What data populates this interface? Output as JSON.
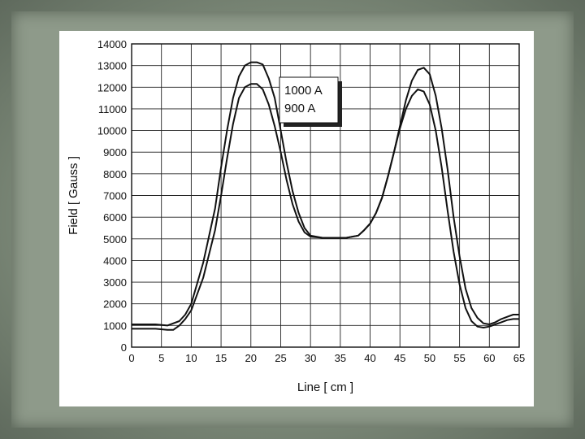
{
  "chart_data": {
    "type": "line",
    "xlabel": "Line [ cm ]",
    "ylabel": "Field [ Gauss ]",
    "xlim": [
      0,
      65
    ],
    "ylim": [
      0,
      14000
    ],
    "xticks": [
      0,
      5,
      10,
      15,
      20,
      25,
      30,
      35,
      40,
      45,
      50,
      55,
      60,
      65
    ],
    "yticks": [
      0,
      1000,
      2000,
      3000,
      4000,
      5000,
      6000,
      7000,
      8000,
      9000,
      10000,
      11000,
      12000,
      13000,
      14000
    ],
    "grid": true,
    "legend_placement": "top-center",
    "series": [
      {
        "name": "1000 A",
        "x": [
          0,
          2,
          4,
          6,
          8,
          9,
          10,
          12,
          14,
          15,
          16,
          17,
          18,
          19,
          20,
          21,
          22,
          23,
          24,
          25,
          26,
          27,
          28,
          29,
          30,
          32,
          34,
          36,
          38,
          39,
          40,
          41,
          42,
          43,
          44,
          45,
          46,
          47,
          48,
          49,
          50,
          51,
          52,
          53,
          54,
          55,
          56,
          57,
          58,
          59,
          60,
          61,
          62,
          63,
          64,
          65
        ],
        "y": [
          1050,
          1050,
          1050,
          1000,
          1200,
          1500,
          2000,
          3900,
          6400,
          8300,
          10000,
          11500,
          12500,
          13000,
          13150,
          13150,
          13050,
          12400,
          11500,
          10000,
          8500,
          7200,
          6200,
          5500,
          5150,
          5050,
          5050,
          5050,
          5150,
          5400,
          5700,
          6200,
          6900,
          7900,
          9000,
          10200,
          11400,
          12300,
          12800,
          12900,
          12600,
          11600,
          10100,
          8200,
          6000,
          4200,
          2700,
          1800,
          1350,
          1100,
          1050,
          1150,
          1300,
          1400,
          1500,
          1500
        ]
      },
      {
        "name": "900 A",
        "x": [
          0,
          2,
          4,
          6,
          7,
          8,
          9,
          10,
          12,
          14,
          15,
          16,
          17,
          18,
          19,
          20,
          21,
          22,
          23,
          24,
          25,
          26,
          27,
          28,
          29,
          30,
          32,
          34,
          36,
          38,
          39,
          40,
          41,
          42,
          43,
          44,
          45,
          46,
          47,
          48,
          49,
          50,
          51,
          52,
          53,
          54,
          55,
          56,
          57,
          58,
          59,
          60,
          61,
          62,
          63,
          64,
          65
        ],
        "y": [
          850,
          850,
          850,
          800,
          800,
          1000,
          1300,
          1700,
          3200,
          5400,
          7000,
          8700,
          10300,
          11500,
          12000,
          12150,
          12150,
          11900,
          11200,
          10200,
          9000,
          7700,
          6600,
          5800,
          5300,
          5100,
          5050,
          5050,
          5050,
          5150,
          5400,
          5700,
          6200,
          6900,
          7900,
          9000,
          10100,
          11000,
          11600,
          11900,
          11800,
          11200,
          10000,
          8300,
          6300,
          4400,
          2900,
          1800,
          1200,
          950,
          900,
          950,
          1050,
          1150,
          1250,
          1300,
          1300
        ]
      }
    ]
  }
}
